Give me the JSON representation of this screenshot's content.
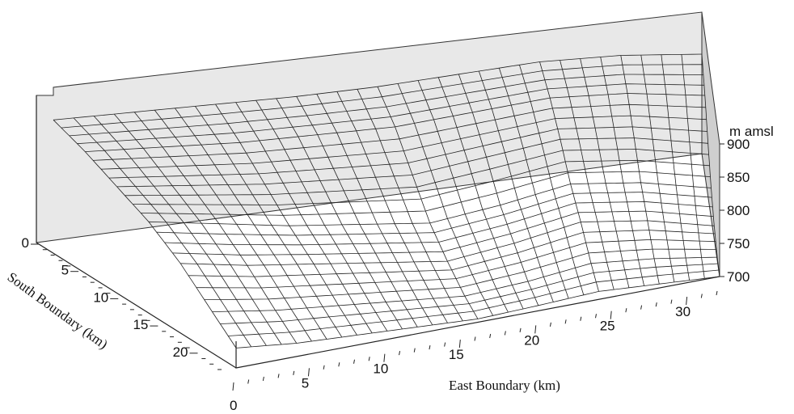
{
  "chart_data": {
    "type": "surface",
    "title": "",
    "xlabel": "East Boundary (km)",
    "ylabel": "South Boundary (km)",
    "zlabel": "m amsl",
    "x_ticks": [
      "5",
      "10",
      "15",
      "20",
      "25",
      "30"
    ],
    "x_origin_label": "0",
    "y_ticks": [
      "0",
      "5",
      "10",
      "15",
      "20"
    ],
    "z_ticks": [
      "700",
      "750",
      "800",
      "850",
      "900"
    ],
    "xlim": [
      0,
      32
    ],
    "ylim": [
      0,
      23
    ],
    "zlim": [
      700,
      900
    ],
    "description_of_surface": {
      "east_km": [
        0,
        4,
        8,
        12,
        16,
        20,
        24,
        28,
        32
      ],
      "south_km": [
        0,
        4,
        8,
        12,
        16,
        20,
        23
      ],
      "elevation_m": [
        [
          885,
          880,
          875,
          870,
          868,
          870,
          872,
          865,
          850
        ],
        [
          870,
          860,
          850,
          845,
          840,
          845,
          850,
          840,
          820
        ],
        [
          850,
          835,
          820,
          810,
          800,
          810,
          820,
          805,
          780
        ],
        [
          830,
          810,
          790,
          775,
          760,
          770,
          785,
          770,
          745
        ],
        [
          800,
          780,
          765,
          750,
          735,
          745,
          760,
          745,
          720
        ],
        [
          760,
          745,
          735,
          725,
          715,
          720,
          730,
          720,
          705
        ],
        [
          730,
          720,
          715,
          710,
          705,
          708,
          712,
          706,
          700
        ]
      ]
    }
  }
}
